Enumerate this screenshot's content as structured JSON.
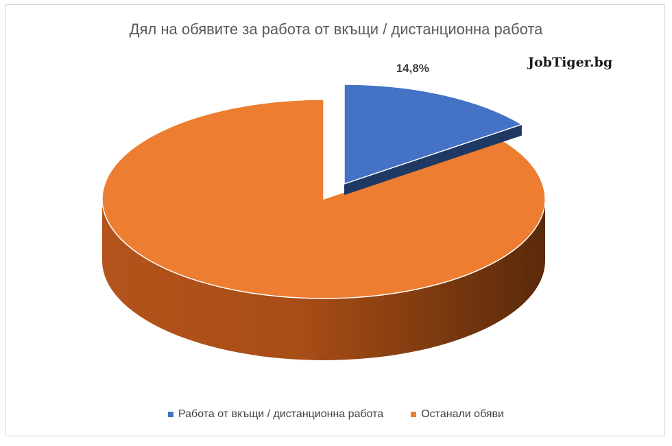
{
  "chart_data": {
    "type": "pie",
    "title": "Дял на обявите за работа от вкъщи / дистанционна работа",
    "categories": [
      "Работа от вкъщи / дистанционна работа",
      "Останали обяви"
    ],
    "values": [
      14.8,
      85.2
    ],
    "colors": [
      "#4472c4",
      "#ed7d31"
    ],
    "data_labels": [
      "14,8%",
      ""
    ],
    "legend_position": "bottom",
    "style": "3d-exploded-pie"
  },
  "watermark": "JobTiger.bg"
}
